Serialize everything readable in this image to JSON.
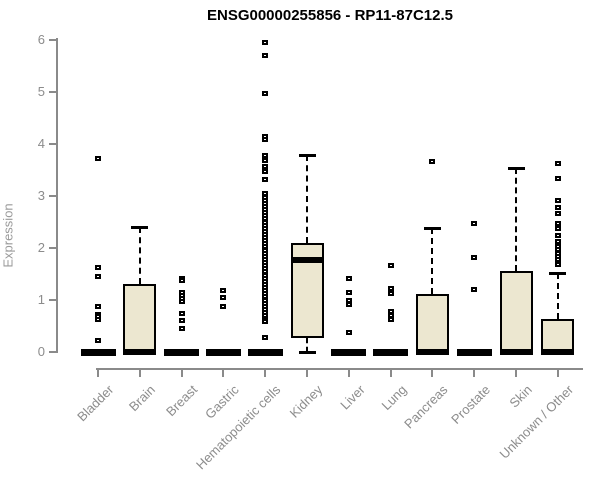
{
  "chart_data": {
    "type": "boxplot",
    "title": "ENSG00000255856 - RP11-87C12.5",
    "xlabel": "",
    "ylabel": "Expression",
    "ylim": [
      0,
      6
    ],
    "yticks": [
      0,
      1,
      2,
      3,
      4,
      5,
      6
    ],
    "grid": false,
    "legend": "none",
    "categories": [
      "Bladder",
      "Brain",
      "Breast",
      "Gastric",
      "Hematopoietic cells",
      "Kidney",
      "Liver",
      "Lung",
      "Pancreas",
      "Prostate",
      "Skin",
      "Unknown / Other"
    ],
    "series": [
      {
        "category": "Bladder",
        "q1": 0,
        "median": 0,
        "q3": 0,
        "whisker_low": 0,
        "whisker_high": 0,
        "outliers": [
          3.73,
          1.62,
          1.45,
          0.87,
          0.73,
          0.68,
          0.62,
          0.23
        ]
      },
      {
        "category": "Brain",
        "q1": 0,
        "median": 0,
        "q3": 1.3,
        "whisker_low": 0,
        "whisker_high": 2.4,
        "outliers": []
      },
      {
        "category": "Breast",
        "q1": 0,
        "median": 0,
        "q3": 0,
        "whisker_low": 0,
        "whisker_high": 0,
        "outliers": [
          1.42,
          1.38,
          1.15,
          1.08,
          1.02,
          0.97,
          0.75,
          0.6,
          0.46
        ]
      },
      {
        "category": "Gastric",
        "q1": 0,
        "median": 0,
        "q3": 0,
        "whisker_low": 0,
        "whisker_high": 0,
        "outliers": [
          1.19,
          1.04,
          0.88
        ]
      },
      {
        "category": "Hematopoietic cells",
        "q1": 0,
        "median": 0,
        "q3": 0,
        "whisker_low": 0,
        "whisker_high": 0,
        "outliers": [
          5.96,
          5.71,
          4.98,
          4.15,
          4.08,
          3.77,
          3.68,
          3.57,
          3.47,
          3.32,
          3.05,
          2.98,
          2.92,
          2.86,
          2.8,
          2.74,
          2.68,
          2.62,
          2.56,
          2.5,
          2.44,
          2.38,
          2.32,
          2.26,
          2.2,
          2.14,
          2.08,
          2.02,
          1.96,
          1.9,
          1.84,
          1.78,
          1.72,
          1.66,
          1.6,
          1.54,
          1.48,
          1.42,
          1.36,
          1.3,
          1.24,
          1.18,
          1.12,
          1.06,
          1.0,
          0.94,
          0.88,
          0.82,
          0.76,
          0.7,
          0.63,
          0.58,
          0.27
        ]
      },
      {
        "category": "Kidney",
        "q1": 0.27,
        "median": 1.77,
        "q3": 2.1,
        "whisker_low": 0,
        "whisker_high": 3.78,
        "outliers": []
      },
      {
        "category": "Liver",
        "q1": 0,
        "median": 0,
        "q3": 0,
        "whisker_low": 0,
        "whisker_high": 0,
        "outliers": [
          1.42,
          1.15,
          1.0,
          0.92,
          0.38
        ]
      },
      {
        "category": "Lung",
        "q1": 0,
        "median": 0,
        "q3": 0,
        "whisker_low": 0,
        "whisker_high": 0,
        "outliers": [
          1.67,
          1.22,
          1.13,
          0.77,
          0.7,
          0.63
        ]
      },
      {
        "category": "Pancreas",
        "q1": 0,
        "median": 0,
        "q3": 1.12,
        "whisker_low": 0,
        "whisker_high": 2.38,
        "outliers": [
          3.67
        ]
      },
      {
        "category": "Prostate",
        "q1": 0,
        "median": 0,
        "q3": 0,
        "whisker_low": 0,
        "whisker_high": 0,
        "outliers": [
          2.48,
          1.81,
          1.21
        ]
      },
      {
        "category": "Skin",
        "q1": 0,
        "median": 0,
        "q3": 1.55,
        "whisker_low": 0,
        "whisker_high": 3.54,
        "outliers": []
      },
      {
        "category": "Unknown / Other",
        "q1": 0,
        "median": 0,
        "q3": 0.63,
        "whisker_low": 0,
        "whisker_high": 1.52,
        "outliers": [
          3.63,
          3.33,
          2.92,
          2.77,
          2.67,
          2.48,
          2.38,
          2.25,
          2.12,
          2.03,
          1.97,
          1.9,
          1.84,
          1.78,
          1.73,
          1.68
        ]
      }
    ],
    "colors": {
      "box_fill": "#ECE7D0",
      "box_border": "#000000",
      "outlier": "#000000",
      "axis": "#8A8A8A",
      "tick_label": "#8C8C8C",
      "title": "#000000"
    }
  }
}
